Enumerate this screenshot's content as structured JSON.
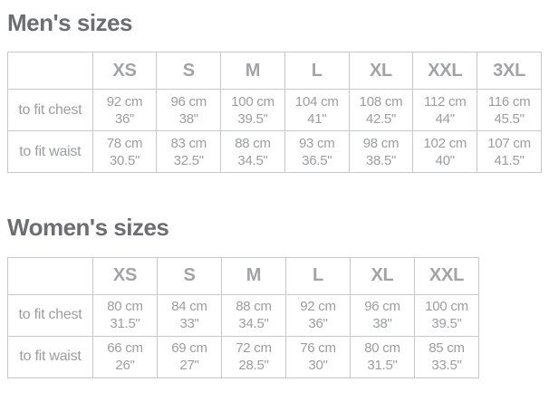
{
  "colors": {
    "heading_text": "#6d6e71",
    "table_text": "#9b9da0",
    "header_text": "#a1a3a6",
    "border": "#c7c8ca",
    "background": "#ffffff"
  },
  "sections": [
    {
      "title": "Men's sizes",
      "columns": [
        "XS",
        "S",
        "M",
        "L",
        "XL",
        "XXL",
        "3XL"
      ],
      "rows": [
        {
          "label": "to fit chest",
          "values": [
            {
              "cm": "92 cm",
              "in": "36\""
            },
            {
              "cm": "96 cm",
              "in": "38\""
            },
            {
              "cm": "100 cm",
              "in": "39.5\""
            },
            {
              "cm": "104 cm",
              "in": "41\""
            },
            {
              "cm": "108 cm",
              "in": "42.5\""
            },
            {
              "cm": "112 cm",
              "in": "44\""
            },
            {
              "cm": "116 cm",
              "in": "45.5\""
            }
          ]
        },
        {
          "label": "to fit waist",
          "values": [
            {
              "cm": "78 cm",
              "in": "30.5\""
            },
            {
              "cm": "83 cm",
              "in": "32.5\""
            },
            {
              "cm": "88 cm",
              "in": "34.5\""
            },
            {
              "cm": "93 cm",
              "in": "36.5\""
            },
            {
              "cm": "98 cm",
              "in": "38.5\""
            },
            {
              "cm": "102 cm",
              "in": "40\""
            },
            {
              "cm": "107 cm",
              "in": "41.5\""
            }
          ]
        }
      ]
    },
    {
      "title": "Women's sizes",
      "columns": [
        "XS",
        "S",
        "M",
        "L",
        "XL",
        "XXL"
      ],
      "rows": [
        {
          "label": "to fit chest",
          "values": [
            {
              "cm": "80 cm",
              "in": "31.5\""
            },
            {
              "cm": "84 cm",
              "in": "33\""
            },
            {
              "cm": "88 cm",
              "in": "34.5\""
            },
            {
              "cm": "92 cm",
              "in": "36\""
            },
            {
              "cm": "96 cm",
              "in": "38\""
            },
            {
              "cm": "100 cm",
              "in": "39.5\""
            }
          ]
        },
        {
          "label": "to fit waist",
          "values": [
            {
              "cm": "66 cm",
              "in": "26\""
            },
            {
              "cm": "69 cm",
              "in": "27\""
            },
            {
              "cm": "72 cm",
              "in": "28.5\""
            },
            {
              "cm": "76 cm",
              "in": "30\""
            },
            {
              "cm": "80 cm",
              "in": "31.5\""
            },
            {
              "cm": "85 cm",
              "in": "33.5\""
            }
          ]
        }
      ]
    }
  ]
}
